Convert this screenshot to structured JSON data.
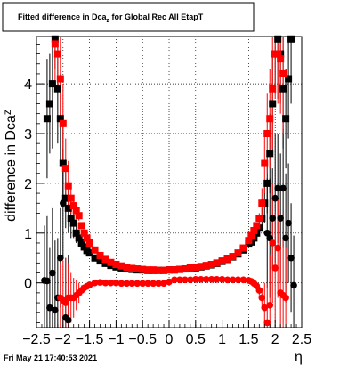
{
  "title_parts": {
    "prefix": "Fitted difference in Dca",
    "subscript": "z",
    "suffix": " for Global Rec All EtapT"
  },
  "footer": {
    "date": "Fri May 21 17:40:53 2021"
  },
  "chart_data": {
    "type": "scatter",
    "title": "Fitted difference in Dca_z for Global Rec All EtapT",
    "xlabel": "η",
    "ylabel": "difference in Dca_z",
    "xlim": [
      -2.5,
      2.5
    ],
    "ylim": [
      -0.9,
      4.95
    ],
    "xticks": [
      -2.5,
      -2,
      -1.5,
      -1,
      -0.5,
      0,
      0.5,
      1,
      1.5,
      2,
      2.5
    ],
    "xtick_labels": [
      "−2.5",
      "−2",
      "−1.5",
      "−1",
      "−0.5",
      "0",
      "0.5",
      "1",
      "1.5",
      "2",
      "2.5"
    ],
    "yticks": [
      0,
      1,
      2,
      3,
      4
    ],
    "ytick_labels": [
      "0",
      "1",
      "2",
      "3",
      "4"
    ],
    "grid": true,
    "series": [
      {
        "color": "#000000",
        "marker": "square",
        "x": [
          -2.3,
          -2.25,
          -2.2,
          -2.15,
          -2.1,
          -2.05,
          -2.0,
          -1.95,
          -1.9,
          -1.85,
          -1.8,
          -1.75,
          -1.7,
          -1.65,
          -1.6,
          -1.55,
          -1.5,
          -1.4,
          -1.3,
          -1.2,
          -1.1,
          -1.0,
          -0.9,
          -0.8,
          -0.7,
          -0.6,
          -0.5,
          -0.4,
          -0.3,
          -0.2,
          -0.1,
          0.0,
          0.1,
          0.2,
          0.3,
          0.4,
          0.5,
          0.6,
          0.7,
          0.8,
          0.9,
          1.0,
          1.1,
          1.2,
          1.3,
          1.4,
          1.5,
          1.55,
          1.6,
          1.65,
          1.7,
          1.75,
          1.8,
          1.85,
          1.9,
          1.95,
          2.0,
          2.05,
          2.1,
          2.15,
          2.2,
          2.25,
          2.3
        ],
        "y": [
          3.3,
          3.6,
          4.0,
          4.9,
          3.9,
          3.3,
          2.4,
          1.7,
          1.5,
          1.3,
          1.2,
          1.0,
          0.9,
          0.8,
          0.72,
          0.65,
          0.6,
          0.5,
          0.44,
          0.39,
          0.35,
          0.32,
          0.3,
          0.28,
          0.27,
          0.26,
          0.26,
          0.25,
          0.25,
          0.25,
          0.25,
          0.26,
          0.26,
          0.27,
          0.28,
          0.29,
          0.3,
          0.32,
          0.34,
          0.36,
          0.39,
          0.43,
          0.47,
          0.52,
          0.58,
          0.66,
          0.78,
          0.82,
          0.9,
          1.0,
          1.1,
          1.3,
          1.6,
          2.0,
          2.6,
          3.6,
          4.6,
          4.9,
          4.6,
          3.9,
          3.3,
          4.1,
          4.9
        ],
        "yerr": [
          1.2,
          1.0,
          1.3,
          0.6,
          1.1,
          0.9,
          0.8,
          0.6,
          0.5,
          0.4,
          0.3,
          0.2,
          0.1,
          0.06,
          0.05,
          0.04,
          0.04,
          0.03,
          0.02,
          0.02,
          0.02,
          0.02,
          0.02,
          0.02,
          0.02,
          0.02,
          0.02,
          0.02,
          0.02,
          0.02,
          0.02,
          0.02,
          0.02,
          0.02,
          0.02,
          0.02,
          0.02,
          0.02,
          0.02,
          0.02,
          0.02,
          0.02,
          0.02,
          0.02,
          0.02,
          0.03,
          0.04,
          0.04,
          0.05,
          0.06,
          0.1,
          0.2,
          0.4,
          0.6,
          0.8,
          1.0,
          0.8,
          1.2,
          1.0,
          1.2,
          1.0,
          1.2,
          1.3
        ]
      },
      {
        "color": "#000000",
        "marker": "circle",
        "x": [
          -2.35,
          -2.3,
          -2.25,
          -2.2,
          -2.15,
          -2.1,
          -2.05,
          -2.0,
          -1.95,
          -1.9,
          1.85,
          1.9,
          1.95,
          2.0,
          2.05,
          2.1,
          2.15,
          2.2,
          2.25,
          2.3,
          2.35
        ],
        "y": [
          0.05,
          0.04,
          -0.5,
          0.2,
          -0.55,
          -0.3,
          0.5,
          1.6,
          -0.7,
          -0.75,
          1.0,
          0.9,
          1.3,
          1.7,
          1.9,
          1.3,
          1.9,
          0.9,
          1.2,
          0.5,
          -0.05
        ],
        "yerr": [
          1.1,
          1.3,
          1.2,
          1.3,
          1.4,
          1.2,
          1.0,
          1.1,
          1.2,
          1.3,
          1.1,
          1.2,
          1.0,
          1.3,
          1.1,
          1.3,
          1.2,
          1.3,
          1.2,
          1.1,
          1.0
        ]
      },
      {
        "color": "#ff0000",
        "marker": "square",
        "x": [
          -2.15,
          -2.1,
          -2.05,
          -2.0,
          -1.95,
          -1.9,
          -1.85,
          -1.8,
          -1.75,
          -1.7,
          -1.65,
          -1.6,
          -1.55,
          -1.5,
          -1.4,
          -1.3,
          -1.2,
          -1.1,
          -1.0,
          -0.9,
          -0.8,
          -0.7,
          -0.6,
          -0.5,
          -0.4,
          -0.3,
          -0.2,
          -0.1,
          0.0,
          0.1,
          0.2,
          0.3,
          0.4,
          0.5,
          0.6,
          0.7,
          0.8,
          0.9,
          1.0,
          1.1,
          1.2,
          1.3,
          1.4,
          1.5,
          1.55,
          1.6,
          1.65,
          1.7,
          1.75,
          1.8,
          1.85,
          1.9,
          1.95,
          2.0,
          2.05,
          2.1,
          2.15
        ],
        "y": [
          4.8,
          4.6,
          4.1,
          3.2,
          2.3,
          1.95,
          1.7,
          1.55,
          1.45,
          1.35,
          1.15,
          1.0,
          0.9,
          0.8,
          0.66,
          0.55,
          0.47,
          0.41,
          0.37,
          0.34,
          0.31,
          0.29,
          0.28,
          0.27,
          0.26,
          0.26,
          0.25,
          0.25,
          0.26,
          0.26,
          0.27,
          0.28,
          0.3,
          0.31,
          0.33,
          0.35,
          0.37,
          0.4,
          0.44,
          0.48,
          0.53,
          0.6,
          0.7,
          0.85,
          0.95,
          1.05,
          1.15,
          1.3,
          1.6,
          2.4,
          3.0,
          3.3,
          3.9,
          4.6,
          4.6,
          4.5,
          4.2
        ],
        "yerr": [
          0.8,
          0.7,
          0.9,
          0.8,
          0.6,
          0.5,
          0.3,
          0.2,
          0.15,
          0.1,
          0.06,
          0.05,
          0.04,
          0.04,
          0.03,
          0.02,
          0.02,
          0.02,
          0.02,
          0.02,
          0.02,
          0.02,
          0.02,
          0.02,
          0.02,
          0.02,
          0.02,
          0.02,
          0.02,
          0.02,
          0.02,
          0.02,
          0.02,
          0.02,
          0.02,
          0.02,
          0.02,
          0.02,
          0.02,
          0.02,
          0.02,
          0.02,
          0.03,
          0.04,
          0.04,
          0.05,
          0.06,
          0.1,
          0.3,
          0.6,
          0.8,
          1.0,
          1.2,
          0.9,
          1.0,
          1.1,
          1.2
        ]
      },
      {
        "color": "#ff0000",
        "marker": "circle",
        "x": [
          -2.05,
          -2.0,
          -1.95,
          -1.9,
          -1.85,
          -1.8,
          -1.75,
          -1.7,
          -1.65,
          -1.6,
          -1.55,
          -1.5,
          -1.4,
          -1.3,
          -1.2,
          -1.1,
          -1.0,
          -0.9,
          -0.8,
          -0.7,
          -0.6,
          -0.5,
          -0.4,
          -0.3,
          -0.2,
          -0.1,
          0.0,
          0.1,
          0.2,
          0.3,
          0.4,
          0.5,
          0.6,
          0.7,
          0.8,
          0.9,
          1.0,
          1.1,
          1.2,
          1.3,
          1.4,
          1.5,
          1.55,
          1.6,
          1.65,
          1.7,
          1.75,
          1.8,
          1.85,
          1.9,
          1.95,
          2.0,
          2.05,
          2.1,
          2.15,
          2.2
        ],
        "y": [
          -0.3,
          -0.35,
          -0.4,
          -0.3,
          -0.3,
          -0.3,
          -0.25,
          -0.2,
          -0.15,
          -0.1,
          -0.07,
          -0.04,
          0.0,
          0.01,
          0.0,
          0.0,
          0.0,
          -0.01,
          -0.01,
          -0.01,
          -0.01,
          -0.01,
          -0.01,
          -0.01,
          -0.01,
          -0.01,
          0.02,
          0.06,
          0.06,
          0.06,
          0.06,
          0.07,
          0.07,
          0.07,
          0.07,
          0.07,
          0.07,
          0.06,
          0.06,
          0.06,
          0.06,
          0.05,
          0.03,
          -0.01,
          -0.06,
          -0.15,
          -0.3,
          -0.5,
          -0.8,
          -0.45,
          0.8,
          0.3,
          0.7,
          -0.2,
          -0.25,
          -0.3
        ],
        "yerr": [
          0.7,
          0.8,
          0.9,
          0.7,
          0.5,
          0.4,
          0.3,
          0.2,
          0.1,
          0.06,
          0.04,
          0.03,
          0.02,
          0.02,
          0.02,
          0.02,
          0.02,
          0.02,
          0.02,
          0.02,
          0.02,
          0.02,
          0.02,
          0.02,
          0.02,
          0.02,
          0.02,
          0.02,
          0.02,
          0.02,
          0.02,
          0.02,
          0.02,
          0.02,
          0.02,
          0.02,
          0.02,
          0.02,
          0.02,
          0.02,
          0.02,
          0.03,
          0.03,
          0.04,
          0.06,
          0.1,
          0.2,
          0.5,
          0.8,
          1.0,
          1.2,
          1.1,
          1.0,
          0.9,
          1.1,
          1.0
        ]
      }
    ]
  }
}
